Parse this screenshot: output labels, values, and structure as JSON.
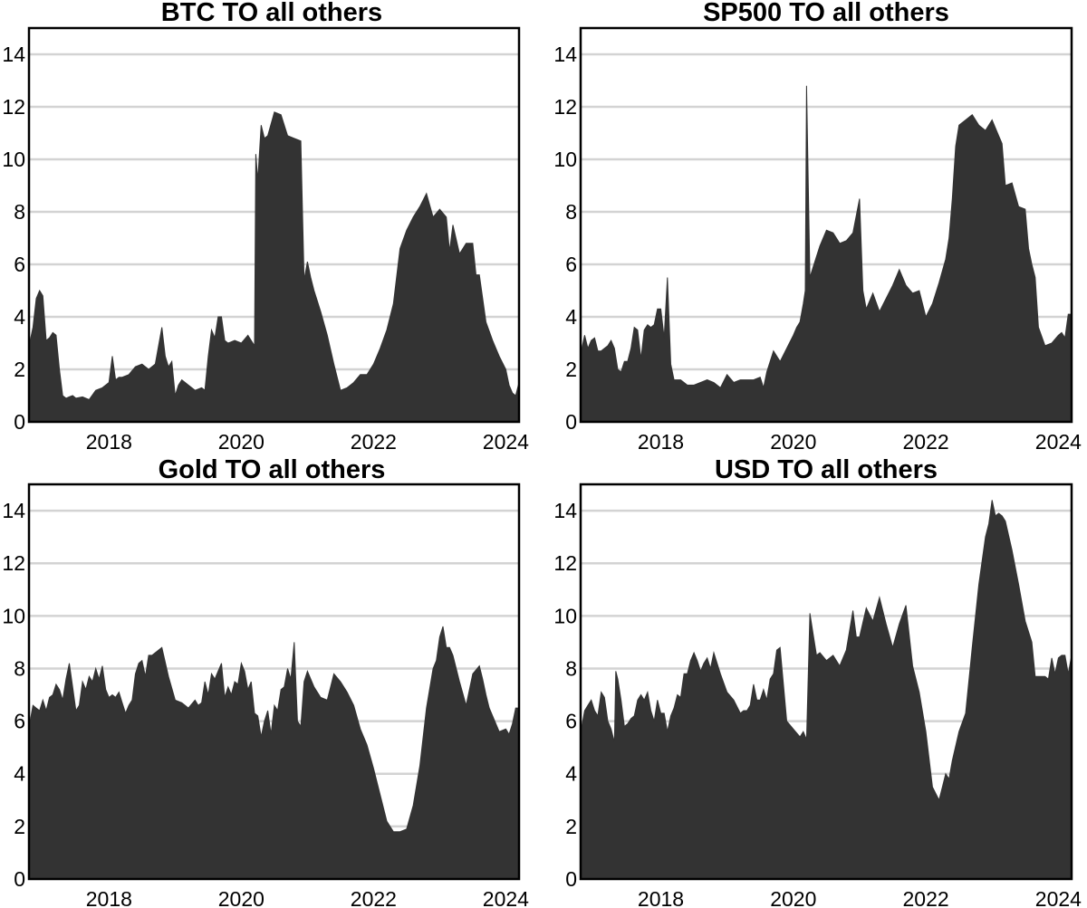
{
  "figure": {
    "fill_color": "#333333",
    "grid_color": "#d3d3d3",
    "background": "#ffffff"
  },
  "chart_data": [
    {
      "type": "area",
      "title": "BTC TO all others",
      "xlabel": "",
      "ylabel": "",
      "xlim": [
        2016.79,
        2024.2
      ],
      "ylim": [
        0,
        15
      ],
      "xticks": [
        "2018",
        "2020",
        "2022",
        "2024"
      ],
      "yticks": [
        "0",
        "2",
        "4",
        "6",
        "8",
        "10",
        "12",
        "14"
      ],
      "grid": "horizontal",
      "x": [
        2016.8,
        2016.85,
        2016.9,
        2016.95,
        2017.0,
        2017.05,
        2017.1,
        2017.15,
        2017.2,
        2017.25,
        2017.3,
        2017.35,
        2017.4,
        2017.45,
        2017.5,
        2017.6,
        2017.7,
        2017.8,
        2017.9,
        2018.0,
        2018.05,
        2018.1,
        2018.15,
        2018.2,
        2018.3,
        2018.4,
        2018.5,
        2018.6,
        2018.7,
        2018.8,
        2018.85,
        2018.9,
        2018.95,
        2019.0,
        2019.05,
        2019.1,
        2019.2,
        2019.3,
        2019.4,
        2019.45,
        2019.5,
        2019.55,
        2019.6,
        2019.65,
        2019.7,
        2019.75,
        2019.8,
        2019.9,
        2020.0,
        2020.1,
        2020.15,
        2020.2,
        2020.22,
        2020.25,
        2020.3,
        2020.35,
        2020.4,
        2020.5,
        2020.6,
        2020.7,
        2020.8,
        2020.9,
        2020.95,
        2021.0,
        2021.05,
        2021.1,
        2021.2,
        2021.3,
        2021.4,
        2021.5,
        2021.6,
        2021.7,
        2021.8,
        2021.9,
        2022.0,
        2022.1,
        2022.2,
        2022.3,
        2022.4,
        2022.5,
        2022.6,
        2022.7,
        2022.8,
        2022.9,
        2023.0,
        2023.1,
        2023.15,
        2023.2,
        2023.3,
        2023.4,
        2023.5,
        2023.55,
        2023.6,
        2023.7,
        2023.8,
        2023.9,
        2024.0,
        2024.05,
        2024.1,
        2024.15,
        2024.2
      ],
      "values": [
        3.0,
        3.6,
        4.7,
        5.0,
        4.8,
        3.1,
        3.2,
        3.4,
        3.3,
        2.0,
        1.0,
        0.9,
        0.95,
        1.0,
        0.9,
        0.95,
        0.85,
        1.2,
        1.3,
        1.5,
        2.5,
        1.6,
        1.7,
        1.7,
        1.8,
        2.1,
        2.2,
        2.0,
        2.2,
        3.6,
        2.5,
        2.1,
        2.3,
        1.0,
        1.4,
        1.6,
        1.4,
        1.2,
        1.3,
        1.2,
        2.5,
        3.5,
        3.2,
        4.0,
        4.0,
        3.1,
        3.0,
        3.1,
        3.0,
        3.3,
        3.1,
        2.9,
        10.2,
        9.2,
        11.3,
        10.8,
        10.9,
        11.8,
        11.7,
        10.9,
        10.8,
        10.7,
        5.4,
        6.1,
        5.5,
        5.0,
        4.2,
        3.3,
        2.2,
        1.2,
        1.3,
        1.5,
        1.8,
        1.8,
        2.2,
        2.8,
        3.5,
        4.5,
        6.6,
        7.3,
        7.8,
        8.2,
        8.7,
        7.8,
        8.1,
        7.8,
        6.5,
        7.5,
        6.4,
        6.8,
        6.8,
        5.6,
        5.6,
        3.8,
        3.1,
        2.5,
        2.0,
        1.4,
        1.1,
        1.0,
        1.5
      ]
    },
    {
      "type": "area",
      "title": "SP500 TO all others",
      "xlabel": "",
      "ylabel": "",
      "xlim": [
        2016.79,
        2024.2
      ],
      "ylim": [
        0,
        15
      ],
      "xticks": [
        "2018",
        "2020",
        "2022",
        "2024"
      ],
      "yticks": [
        "0",
        "2",
        "4",
        "6",
        "8",
        "10",
        "12",
        "14"
      ],
      "grid": "horizontal",
      "x": [
        2016.8,
        2016.85,
        2016.9,
        2016.95,
        2017.0,
        2017.05,
        2017.1,
        2017.15,
        2017.2,
        2017.25,
        2017.3,
        2017.35,
        2017.4,
        2017.45,
        2017.5,
        2017.55,
        2017.6,
        2017.65,
        2017.7,
        2017.75,
        2017.8,
        2017.85,
        2017.9,
        2017.95,
        2018.0,
        2018.05,
        2018.1,
        2018.15,
        2018.2,
        2018.3,
        2018.4,
        2018.5,
        2018.6,
        2018.7,
        2018.8,
        2018.9,
        2019.0,
        2019.1,
        2019.2,
        2019.3,
        2019.4,
        2019.5,
        2019.55,
        2019.6,
        2019.7,
        2019.8,
        2019.9,
        2020.0,
        2020.05,
        2020.1,
        2020.15,
        2020.18,
        2020.2,
        2020.25,
        2020.3,
        2020.4,
        2020.5,
        2020.6,
        2020.7,
        2020.8,
        2020.9,
        2021.0,
        2021.05,
        2021.1,
        2021.2,
        2021.3,
        2021.4,
        2021.5,
        2021.6,
        2021.7,
        2021.8,
        2021.9,
        2022.0,
        2022.1,
        2022.2,
        2022.3,
        2022.35,
        2022.4,
        2022.45,
        2022.5,
        2022.6,
        2022.7,
        2022.8,
        2022.9,
        2023.0,
        2023.1,
        2023.15,
        2023.2,
        2023.3,
        2023.4,
        2023.5,
        2023.55,
        2023.6,
        2023.65,
        2023.7,
        2023.8,
        2023.9,
        2024.0,
        2024.05,
        2024.1,
        2024.15,
        2024.2
      ],
      "values": [
        2.7,
        3.3,
        2.8,
        3.1,
        3.2,
        2.7,
        2.7,
        2.8,
        2.9,
        3.1,
        2.8,
        2.0,
        1.9,
        2.3,
        2.3,
        2.8,
        3.6,
        3.5,
        2.4,
        3.5,
        3.7,
        3.6,
        3.7,
        4.3,
        4.3,
        3.2,
        5.5,
        2.2,
        1.6,
        1.6,
        1.4,
        1.4,
        1.5,
        1.6,
        1.5,
        1.3,
        1.8,
        1.5,
        1.6,
        1.6,
        1.6,
        1.7,
        1.3,
        1.9,
        2.7,
        2.3,
        2.8,
        3.3,
        3.6,
        3.8,
        4.5,
        5.0,
        12.8,
        5.5,
        5.9,
        6.7,
        7.3,
        7.2,
        6.8,
        6.9,
        7.2,
        8.5,
        5.0,
        4.3,
        4.9,
        4.2,
        4.7,
        5.2,
        5.8,
        5.2,
        4.9,
        5.0,
        4.0,
        4.5,
        5.3,
        6.2,
        7.0,
        8.5,
        10.5,
        11.3,
        11.5,
        11.7,
        11.3,
        11.1,
        11.5,
        10.9,
        10.6,
        9.0,
        9.1,
        8.2,
        8.1,
        6.6,
        6.0,
        5.5,
        3.6,
        2.9,
        3.0,
        3.3,
        3.4,
        3.2,
        4.1,
        4.1
      ]
    },
    {
      "type": "area",
      "title": "Gold TO all others",
      "xlabel": "",
      "ylabel": "",
      "xlim": [
        2016.79,
        2024.2
      ],
      "ylim": [
        0,
        15
      ],
      "xticks": [
        "2018",
        "2020",
        "2022",
        "2024"
      ],
      "yticks": [
        "0",
        "2",
        "4",
        "6",
        "8",
        "10",
        "12",
        "14"
      ],
      "grid": "horizontal",
      "x": [
        2016.8,
        2016.85,
        2016.9,
        2016.95,
        2017.0,
        2017.05,
        2017.1,
        2017.15,
        2017.2,
        2017.25,
        2017.3,
        2017.35,
        2017.4,
        2017.45,
        2017.5,
        2017.55,
        2017.6,
        2017.65,
        2017.7,
        2017.75,
        2017.8,
        2017.85,
        2017.9,
        2017.95,
        2018.0,
        2018.05,
        2018.1,
        2018.15,
        2018.2,
        2018.25,
        2018.3,
        2018.35,
        2018.4,
        2018.45,
        2018.5,
        2018.55,
        2018.6,
        2018.65,
        2018.7,
        2018.8,
        2018.9,
        2019.0,
        2019.1,
        2019.2,
        2019.3,
        2019.35,
        2019.4,
        2019.45,
        2019.5,
        2019.55,
        2019.6,
        2019.65,
        2019.7,
        2019.75,
        2019.8,
        2019.85,
        2019.9,
        2019.95,
        2020.0,
        2020.05,
        2020.1,
        2020.15,
        2020.2,
        2020.25,
        2020.3,
        2020.35,
        2020.4,
        2020.45,
        2020.5,
        2020.55,
        2020.6,
        2020.65,
        2020.7,
        2020.75,
        2020.8,
        2020.85,
        2020.9,
        2020.95,
        2021.0,
        2021.1,
        2021.2,
        2021.3,
        2021.4,
        2021.5,
        2021.6,
        2021.7,
        2021.8,
        2021.9,
        2022.0,
        2022.1,
        2022.2,
        2022.3,
        2022.4,
        2022.5,
        2022.6,
        2022.7,
        2022.8,
        2022.9,
        2022.95,
        2023.0,
        2023.05,
        2023.1,
        2023.15,
        2023.2,
        2023.3,
        2023.4,
        2023.5,
        2023.6,
        2023.65,
        2023.7,
        2023.75,
        2023.8,
        2023.9,
        2024.0,
        2024.05,
        2024.1,
        2024.15,
        2024.2
      ],
      "values": [
        5.9,
        6.6,
        6.5,
        6.4,
        6.8,
        6.4,
        6.9,
        7.0,
        7.4,
        7.2,
        6.8,
        7.6,
        8.2,
        7.3,
        6.4,
        6.6,
        7.5,
        7.2,
        7.7,
        7.5,
        8.0,
        7.6,
        8.1,
        7.2,
        6.9,
        7.0,
        6.9,
        7.1,
        6.7,
        6.3,
        6.6,
        6.8,
        7.8,
        8.2,
        8.3,
        7.7,
        8.5,
        8.5,
        8.6,
        8.8,
        7.7,
        6.8,
        6.7,
        6.5,
        6.8,
        6.6,
        6.7,
        7.5,
        7.0,
        7.8,
        7.6,
        7.9,
        8.2,
        6.9,
        7.3,
        7.0,
        7.5,
        7.4,
        8.2,
        7.9,
        7.2,
        7.5,
        6.3,
        6.2,
        5.4,
        6.0,
        6.4,
        5.5,
        6.6,
        6.4,
        7.2,
        7.3,
        8.0,
        7.6,
        9.0,
        6.0,
        5.8,
        7.5,
        7.9,
        7.3,
        6.9,
        6.8,
        7.8,
        7.5,
        7.1,
        6.6,
        5.7,
        5.1,
        4.2,
        3.2,
        2.2,
        1.8,
        1.8,
        1.9,
        2.8,
        4.3,
        6.5,
        8.0,
        8.3,
        9.2,
        9.6,
        8.8,
        8.8,
        8.5,
        7.5,
        6.6,
        7.8,
        8.1,
        7.6,
        7.0,
        6.5,
        6.2,
        5.6,
        5.7,
        5.5,
        5.9,
        6.5,
        6.5
      ]
    },
    {
      "type": "area",
      "title": "USD TO all others",
      "xlabel": "",
      "ylabel": "",
      "xlim": [
        2016.79,
        2024.2
      ],
      "ylim": [
        0,
        15
      ],
      "xticks": [
        "2018",
        "2020",
        "2022",
        "2024"
      ],
      "yticks": [
        "0",
        "2",
        "4",
        "6",
        "8",
        "10",
        "12",
        "14"
      ],
      "grid": "horizontal",
      "x": [
        2016.8,
        2016.85,
        2016.9,
        2016.95,
        2017.0,
        2017.05,
        2017.1,
        2017.15,
        2017.2,
        2017.25,
        2017.3,
        2017.32,
        2017.35,
        2017.4,
        2017.45,
        2017.5,
        2017.55,
        2017.6,
        2017.65,
        2017.7,
        2017.75,
        2017.8,
        2017.85,
        2017.9,
        2017.95,
        2018.0,
        2018.05,
        2018.1,
        2018.15,
        2018.2,
        2018.25,
        2018.3,
        2018.35,
        2018.4,
        2018.45,
        2018.5,
        2018.55,
        2018.6,
        2018.65,
        2018.7,
        2018.75,
        2018.8,
        2018.9,
        2019.0,
        2019.1,
        2019.2,
        2019.25,
        2019.3,
        2019.35,
        2019.4,
        2019.45,
        2019.5,
        2019.55,
        2019.6,
        2019.65,
        2019.7,
        2019.75,
        2019.8,
        2019.9,
        2020.0,
        2020.1,
        2020.15,
        2020.2,
        2020.25,
        2020.3,
        2020.35,
        2020.4,
        2020.5,
        2020.6,
        2020.7,
        2020.8,
        2020.9,
        2020.95,
        2021.0,
        2021.1,
        2021.2,
        2021.3,
        2021.4,
        2021.5,
        2021.6,
        2021.7,
        2021.8,
        2021.9,
        2022.0,
        2022.1,
        2022.2,
        2022.25,
        2022.3,
        2022.35,
        2022.4,
        2022.5,
        2022.6,
        2022.7,
        2022.8,
        2022.9,
        2022.95,
        2023.0,
        2023.05,
        2023.1,
        2023.15,
        2023.2,
        2023.3,
        2023.4,
        2023.5,
        2023.6,
        2023.65,
        2023.7,
        2023.8,
        2023.85,
        2023.9,
        2023.95,
        2024.0,
        2024.05,
        2024.1,
        2024.15,
        2024.2
      ],
      "values": [
        5.7,
        6.4,
        6.6,
        6.8,
        6.4,
        6.2,
        7.1,
        6.9,
        6.0,
        5.7,
        5.2,
        7.9,
        7.6,
        6.8,
        5.8,
        5.9,
        6.1,
        6.2,
        6.8,
        7.0,
        6.8,
        7.1,
        6.4,
        6.0,
        6.8,
        6.3,
        6.3,
        5.6,
        6.2,
        6.5,
        7.0,
        6.9,
        7.8,
        7.8,
        8.3,
        8.6,
        8.3,
        7.9,
        8.2,
        8.4,
        8.0,
        8.6,
        7.8,
        7.1,
        6.8,
        6.3,
        6.4,
        6.4,
        6.6,
        7.4,
        6.8,
        6.8,
        7.2,
        6.8,
        7.6,
        7.8,
        8.7,
        8.8,
        6.0,
        5.7,
        5.4,
        5.6,
        5.3,
        10.1,
        9.3,
        8.5,
        8.6,
        8.3,
        8.5,
        8.1,
        8.7,
        10.2,
        9.2,
        9.2,
        10.3,
        9.8,
        10.7,
        9.7,
        8.8,
        9.7,
        10.4,
        8.1,
        7.1,
        5.6,
        3.5,
        3.0,
        3.5,
        4.0,
        3.8,
        4.5,
        5.6,
        6.3,
        8.8,
        11.2,
        13.0,
        13.5,
        14.4,
        13.8,
        13.9,
        13.8,
        13.6,
        12.5,
        11.2,
        9.8,
        9.0,
        7.7,
        7.7,
        7.7,
        7.6,
        8.4,
        7.8,
        8.4,
        8.5,
        8.5,
        7.8,
        8.5
      ]
    }
  ]
}
